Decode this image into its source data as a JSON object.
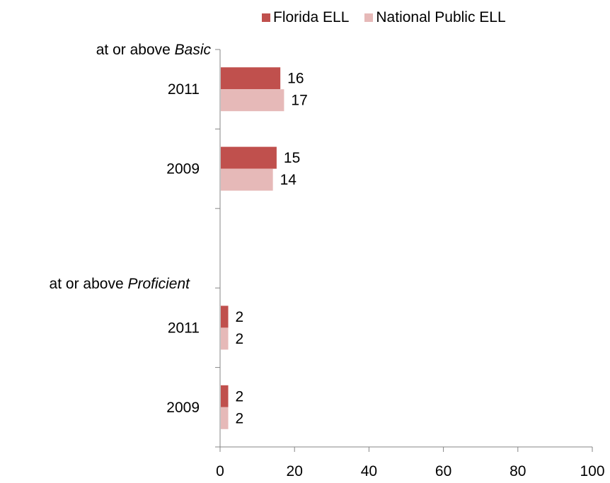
{
  "chart_data": {
    "type": "bar",
    "orientation": "horizontal",
    "groups": [
      {
        "label_prefix": "at or above ",
        "label_emph": "Basic",
        "categories": [
          "2011",
          "2009"
        ],
        "series_values": {
          "Florida ELL": [
            16,
            15
          ],
          "National Public ELL": [
            17,
            14
          ]
        }
      },
      {
        "label_prefix": "at or above ",
        "label_emph": "Proficient",
        "categories": [
          "2011",
          "2009"
        ],
        "series_values": {
          "Florida ELL": [
            2,
            2
          ],
          "National Public ELL": [
            2,
            2
          ]
        }
      }
    ],
    "series": [
      {
        "name": "Florida ELL",
        "color": "#c0504d"
      },
      {
        "name": "National Public ELL",
        "color": "#e6b9b8"
      }
    ],
    "xlim": [
      0,
      100
    ],
    "xticks": [
      "0",
      "20",
      "40",
      "60",
      "80",
      "100"
    ],
    "grid": false,
    "legend_position": "top"
  }
}
